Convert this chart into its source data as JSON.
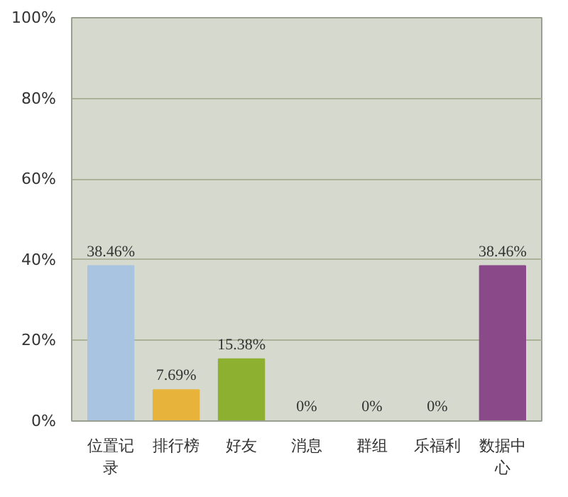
{
  "chart_data": {
    "type": "bar",
    "categories": [
      "位置记录",
      "排行榜",
      "好友",
      "消息",
      "群组",
      "乐福利",
      "数据中心"
    ],
    "values": [
      38.46,
      7.69,
      15.38,
      0,
      0,
      0,
      38.46
    ],
    "colors": [
      "#a9c4e0",
      "#e8b33a",
      "#8db030",
      "#f0a070",
      "#3aa6a6",
      "#d87080",
      "#8a4a8a"
    ],
    "value_labels": [
      "38.46%",
      "7.69%",
      "15.38%",
      "0%",
      "0%",
      "0%",
      "38.46%"
    ],
    "ylim": [
      0,
      100
    ],
    "yticks": [
      {
        "value": 0,
        "label": "0%"
      },
      {
        "value": 20,
        "label": "20%"
      },
      {
        "value": 40,
        "label": "40%"
      },
      {
        "value": 60,
        "label": "60%"
      },
      {
        "value": 80,
        "label": "80%"
      },
      {
        "value": 100,
        "label": "100%"
      }
    ],
    "grid": "y"
  }
}
